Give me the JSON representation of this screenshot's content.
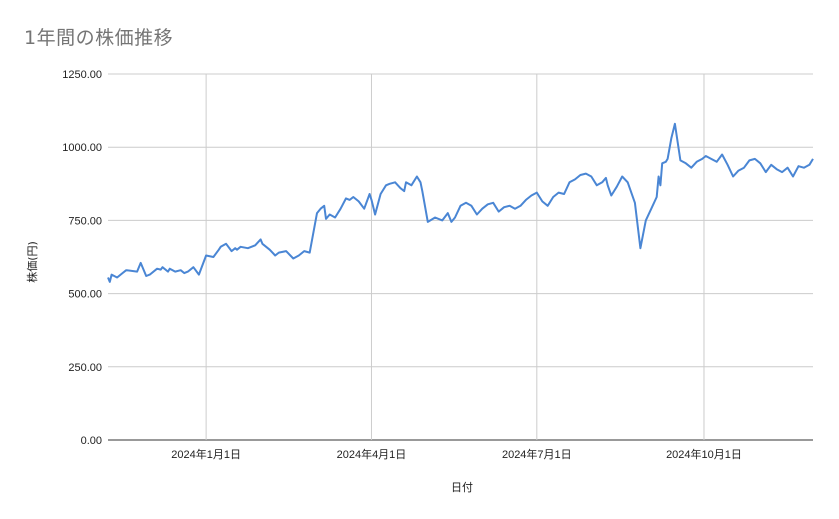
{
  "chart_data": {
    "type": "line",
    "title": "1年間の株価推移",
    "xlabel": "日付",
    "ylabel": "株価(円)",
    "ylim": [
      0,
      1250
    ],
    "yticks": [
      0,
      250,
      500,
      750,
      1000,
      1250
    ],
    "ytick_labels": [
      "0.00",
      "250.00",
      "500.00",
      "750.00",
      "1000.00",
      "1250.00"
    ],
    "xlim": [
      "2023-11-08",
      "2024-11-30"
    ],
    "xticks": [
      "2024-01-01",
      "2024-04-01",
      "2024-07-01",
      "2024-10-01"
    ],
    "xtick_labels": [
      "2024年1月1日",
      "2024年4月1日",
      "2024年7月1日",
      "2024年10月1日"
    ],
    "grid": true,
    "legend": "none",
    "line_color": "#4a86d4",
    "series": [
      {
        "x": [
          "2023-11-08",
          "2023-11-09",
          "2023-11-10",
          "2023-11-13",
          "2023-11-16",
          "2023-11-18",
          "2023-11-24",
          "2023-11-26",
          "2023-11-29",
          "2023-12-01",
          "2023-12-05",
          "2023-12-07",
          "2023-12-08",
          "2023-12-11",
          "2023-12-12",
          "2023-12-15",
          "2023-12-18",
          "2023-12-20",
          "2023-12-22",
          "2023-12-25",
          "2023-12-28",
          "2024-01-01",
          "2024-01-05",
          "2024-01-08",
          "2024-01-09",
          "2024-01-12",
          "2024-01-15",
          "2024-01-17",
          "2024-01-18",
          "2024-01-20",
          "2024-01-24",
          "2024-01-28",
          "2024-01-31",
          "2024-02-01",
          "2024-02-05",
          "2024-02-08",
          "2024-02-10",
          "2024-02-14",
          "2024-02-18",
          "2024-02-21",
          "2024-02-24",
          "2024-02-27",
          "2024-03-02",
          "2024-03-04",
          "2024-03-06",
          "2024-03-07",
          "2024-03-09",
          "2024-03-12",
          "2024-03-15",
          "2024-03-18",
          "2024-03-20",
          "2024-03-22",
          "2024-03-25",
          "2024-03-28",
          "2024-03-31",
          "2024-04-01",
          "2024-04-03",
          "2024-04-06",
          "2024-04-09",
          "2024-04-11",
          "2024-04-14",
          "2024-04-17",
          "2024-04-19",
          "2024-04-20",
          "2024-04-23",
          "2024-04-26",
          "2024-04-28",
          "2024-04-29",
          "2024-05-02",
          "2024-05-06",
          "2024-05-10",
          "2024-05-13",
          "2024-05-15",
          "2024-05-17",
          "2024-05-20",
          "2024-05-23",
          "2024-05-26",
          "2024-05-29",
          "2024-06-01",
          "2024-06-04",
          "2024-06-07",
          "2024-06-10",
          "2024-06-13",
          "2024-06-16",
          "2024-06-19",
          "2024-06-22",
          "2024-06-25",
          "2024-06-28",
          "2024-07-01",
          "2024-07-04",
          "2024-07-07",
          "2024-07-10",
          "2024-07-13",
          "2024-07-16",
          "2024-07-19",
          "2024-07-22",
          "2024-07-25",
          "2024-07-28",
          "2024-07-31",
          "2024-08-03",
          "2024-08-06",
          "2024-08-08",
          "2024-08-09",
          "2024-08-11",
          "2024-08-14",
          "2024-08-17",
          "2024-08-20",
          "2024-08-24",
          "2024-08-27",
          "2024-08-30",
          "2024-09-02",
          "2024-09-05",
          "2024-09-06",
          "2024-09-07",
          "2024-09-08",
          "2024-09-10",
          "2024-09-11",
          "2024-09-13",
          "2024-09-15",
          "2024-09-18",
          "2024-09-21",
          "2024-09-24",
          "2024-09-27",
          "2024-09-30",
          "2024-10-02",
          "2024-10-05",
          "2024-10-08",
          "2024-10-11",
          "2024-10-14",
          "2024-10-17",
          "2024-10-20",
          "2024-10-23",
          "2024-10-26",
          "2024-10-29",
          "2024-11-01",
          "2024-11-04",
          "2024-11-07",
          "2024-11-10",
          "2024-11-13",
          "2024-11-16",
          "2024-11-19",
          "2024-11-22",
          "2024-11-25",
          "2024-11-28",
          "2024-11-30"
        ],
        "y": [
          555,
          540,
          565,
          555,
          570,
          580,
          575,
          605,
          560,
          565,
          585,
          582,
          590,
          575,
          585,
          575,
          580,
          570,
          575,
          590,
          565,
          630,
          625,
          650,
          660,
          670,
          645,
          655,
          650,
          660,
          655,
          665,
          685,
          670,
          650,
          630,
          640,
          645,
          620,
          630,
          645,
          640,
          775,
          790,
          800,
          755,
          770,
          760,
          790,
          825,
          820,
          830,
          815,
          790,
          840,
          820,
          770,
          840,
          870,
          875,
          880,
          860,
          850,
          880,
          870,
          900,
          880,
          850,
          745,
          760,
          750,
          775,
          745,
          760,
          800,
          810,
          800,
          770,
          790,
          805,
          810,
          780,
          795,
          800,
          790,
          800,
          820,
          835,
          845,
          815,
          800,
          830,
          845,
          840,
          880,
          890,
          905,
          910,
          900,
          870,
          880,
          895,
          870,
          835,
          865,
          900,
          880,
          810,
          655,
          750,
          790,
          830,
          900,
          870,
          945,
          950,
          960,
          1030,
          1080,
          955,
          945,
          930,
          950,
          960,
          970,
          960,
          950,
          975,
          940,
          900,
          920,
          930,
          955,
          960,
          945,
          915,
          940,
          925,
          915,
          930,
          900,
          935,
          930,
          940,
          960
        ]
      }
    ]
  }
}
